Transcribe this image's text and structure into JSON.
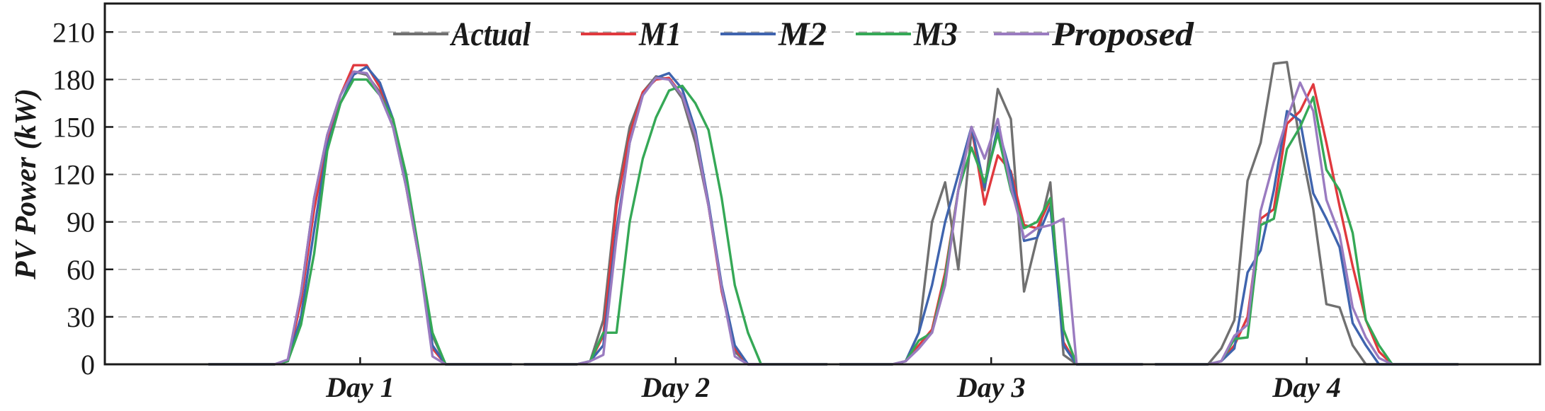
{
  "chart_data": {
    "type": "line",
    "title": "",
    "ylabel": "PV Power (kW)",
    "xlabel": "",
    "ylim": [
      0,
      228
    ],
    "yticks": [
      0,
      30,
      60,
      90,
      120,
      150,
      180,
      210
    ],
    "grid": "horizontal dashed",
    "legend_position": "top",
    "categories": [
      "Day 1",
      "Day 2",
      "Day 3",
      "Day 4"
    ],
    "hours_per_day": 24,
    "series": [
      {
        "name": "Actual",
        "color": "#707070",
        "values": [
          [
            0,
            0,
            0,
            0,
            0,
            0,
            2,
            45,
            105,
            145,
            170,
            185,
            183,
            172,
            150,
            112,
            68,
            18,
            0,
            0,
            0,
            0,
            0,
            0
          ],
          [
            0,
            0,
            0,
            0,
            0,
            2,
            28,
            105,
            150,
            172,
            182,
            180,
            168,
            140,
            100,
            48,
            8,
            0,
            0,
            0,
            0,
            0,
            0,
            0
          ],
          [
            0,
            0,
            0,
            0,
            0,
            2,
            20,
            90,
            115,
            60,
            148,
            110,
            174,
            155,
            46,
            80,
            115,
            6,
            0,
            0,
            0,
            0,
            0,
            0
          ],
          [
            0,
            0,
            0,
            0,
            0,
            10,
            28,
            116,
            140,
            190,
            191,
            140,
            98,
            38,
            36,
            12,
            0,
            0,
            0,
            0,
            0,
            0,
            0,
            0
          ]
        ]
      },
      {
        "name": "M1",
        "color": "#e0393e",
        "values": [
          [
            0,
            0,
            0,
            0,
            0,
            0,
            2,
            40,
            98,
            140,
            170,
            189,
            189,
            175,
            155,
            112,
            66,
            10,
            0,
            0,
            0,
            0,
            0,
            0
          ],
          [
            0,
            0,
            0,
            0,
            0,
            2,
            18,
            100,
            145,
            172,
            180,
            181,
            170,
            145,
            100,
            46,
            10,
            0,
            0,
            0,
            0,
            0,
            0,
            0
          ],
          [
            0,
            0,
            0,
            0,
            0,
            2,
            12,
            22,
            58,
            110,
            150,
            101,
            132,
            122,
            88,
            86,
            104,
            14,
            0,
            0,
            0,
            0,
            0,
            0
          ],
          [
            0,
            0,
            0,
            0,
            0,
            2,
            12,
            30,
            92,
            98,
            152,
            160,
            177,
            140,
            100,
            62,
            28,
            8,
            0,
            0,
            0,
            0,
            0,
            0
          ]
        ]
      },
      {
        "name": "M2",
        "color": "#3f64ae",
        "values": [
          [
            0,
            0,
            0,
            0,
            0,
            0,
            2,
            30,
            85,
            138,
            165,
            183,
            188,
            178,
            155,
            118,
            68,
            12,
            0,
            0,
            0,
            0,
            0,
            0
          ],
          [
            0,
            0,
            0,
            0,
            0,
            2,
            12,
            85,
            140,
            170,
            181,
            184,
            174,
            148,
            102,
            50,
            12,
            0,
            0,
            0,
            0,
            0,
            0,
            0
          ],
          [
            0,
            0,
            0,
            0,
            0,
            2,
            20,
            50,
            90,
            120,
            150,
            112,
            150,
            120,
            78,
            80,
            100,
            12,
            0,
            0,
            0,
            0,
            0,
            0
          ],
          [
            0,
            0,
            0,
            0,
            0,
            2,
            10,
            58,
            72,
            110,
            160,
            154,
            108,
            92,
            74,
            26,
            12,
            0,
            0,
            0,
            0,
            0,
            0,
            0
          ]
        ]
      },
      {
        "name": "M3",
        "color": "#35a856",
        "values": [
          [
            0,
            0,
            0,
            0,
            0,
            0,
            2,
            25,
            70,
            135,
            165,
            180,
            180,
            170,
            155,
            120,
            70,
            20,
            0,
            0,
            0,
            0,
            0,
            0
          ],
          [
            0,
            0,
            0,
            0,
            0,
            2,
            20,
            20,
            90,
            130,
            156,
            173,
            176,
            165,
            148,
            105,
            50,
            20,
            0,
            0,
            0,
            0,
            0,
            0
          ],
          [
            0,
            0,
            0,
            0,
            0,
            2,
            15,
            20,
            55,
            110,
            137,
            115,
            146,
            110,
            86,
            90,
            105,
            22,
            0,
            0,
            0,
            0,
            0,
            0
          ],
          [
            0,
            0,
            0,
            0,
            0,
            2,
            16,
            17,
            88,
            92,
            136,
            150,
            169,
            123,
            110,
            83,
            28,
            12,
            0,
            0,
            0,
            0,
            0,
            0
          ]
        ]
      },
      {
        "name": "Proposed",
        "color": "#9a7bc0",
        "values": [
          [
            0,
            0,
            0,
            0,
            0,
            0,
            3,
            45,
            105,
            145,
            170,
            185,
            184,
            170,
            150,
            112,
            66,
            5,
            0,
            0,
            0,
            0,
            0,
            0
          ],
          [
            0,
            0,
            0,
            0,
            0,
            2,
            6,
            80,
            140,
            170,
            181,
            180,
            170,
            145,
            100,
            48,
            5,
            0,
            0,
            0,
            0,
            0,
            0,
            0
          ],
          [
            0,
            0,
            0,
            0,
            0,
            2,
            10,
            20,
            50,
            110,
            150,
            130,
            155,
            112,
            80,
            86,
            88,
            92,
            0,
            0,
            0,
            0,
            0,
            0
          ],
          [
            0,
            0,
            0,
            0,
            0,
            2,
            18,
            25,
            97,
            128,
            155,
            178,
            160,
            104,
            82,
            36,
            17,
            4,
            0,
            0,
            0,
            0,
            0,
            0
          ]
        ]
      }
    ]
  }
}
